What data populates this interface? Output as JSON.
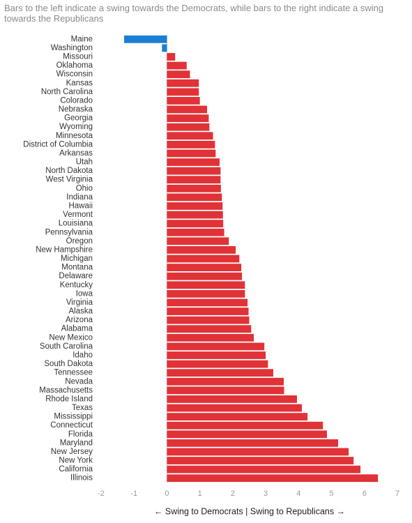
{
  "chart_data": {
    "type": "hbar",
    "title": "Bars to the left indicate a swing towards the Democrats, while bars to the right indicate a swing towards the Republicans",
    "x_label": "← Swing to Democrats | Swing to Republicans →",
    "categories": [
      "Maine",
      "Washington",
      "Missouri",
      "Oklahoma",
      "Wisconsin",
      "Kansas",
      "North Carolina",
      "Colorado",
      "Nebraska",
      "Georgia",
      "Wyoming",
      "Minnesota",
      "District of Columbia",
      "Arkansas",
      "Utah",
      "North Dakota",
      "West Virginia",
      "Ohio",
      "Indiana",
      "Hawaii",
      "Vermont",
      "Louisiana",
      "Pennsylvania",
      "Oregon",
      "New Hampshire",
      "Michigan",
      "Montana",
      "Delaware",
      "Kentucky",
      "Iowa",
      "Virginia",
      "Alaska",
      "Arizona",
      "Alabama",
      "New Mexico",
      "South Carolina",
      "Idaho",
      "South Dakota",
      "Tennessee",
      "Nevada",
      "Massachusetts",
      "Rhode Island",
      "Texas",
      "Mississippi",
      "Connecticut",
      "Florida",
      "Maryland",
      "New Jersey",
      "New York",
      "California",
      "Illinois"
    ],
    "values": [
      -1.3,
      -0.15,
      0.25,
      0.6,
      0.7,
      0.97,
      0.97,
      1.0,
      1.22,
      1.27,
      1.29,
      1.4,
      1.46,
      1.48,
      1.6,
      1.63,
      1.63,
      1.64,
      1.67,
      1.69,
      1.7,
      1.71,
      1.74,
      1.88,
      2.09,
      2.2,
      2.26,
      2.28,
      2.37,
      2.37,
      2.45,
      2.48,
      2.5,
      2.56,
      2.64,
      2.96,
      3.0,
      3.07,
      3.23,
      3.55,
      3.56,
      3.95,
      4.1,
      4.27,
      4.74,
      4.86,
      5.2,
      5.52,
      5.67,
      5.88,
      6.41
    ],
    "color_positive": "#e03237",
    "color_negative": "#1a7fd4",
    "xlim": [
      -2,
      7
    ],
    "xticks": [
      -2,
      -1,
      0,
      1,
      2,
      3,
      4,
      5,
      6,
      7
    ],
    "zero_line": true
  }
}
